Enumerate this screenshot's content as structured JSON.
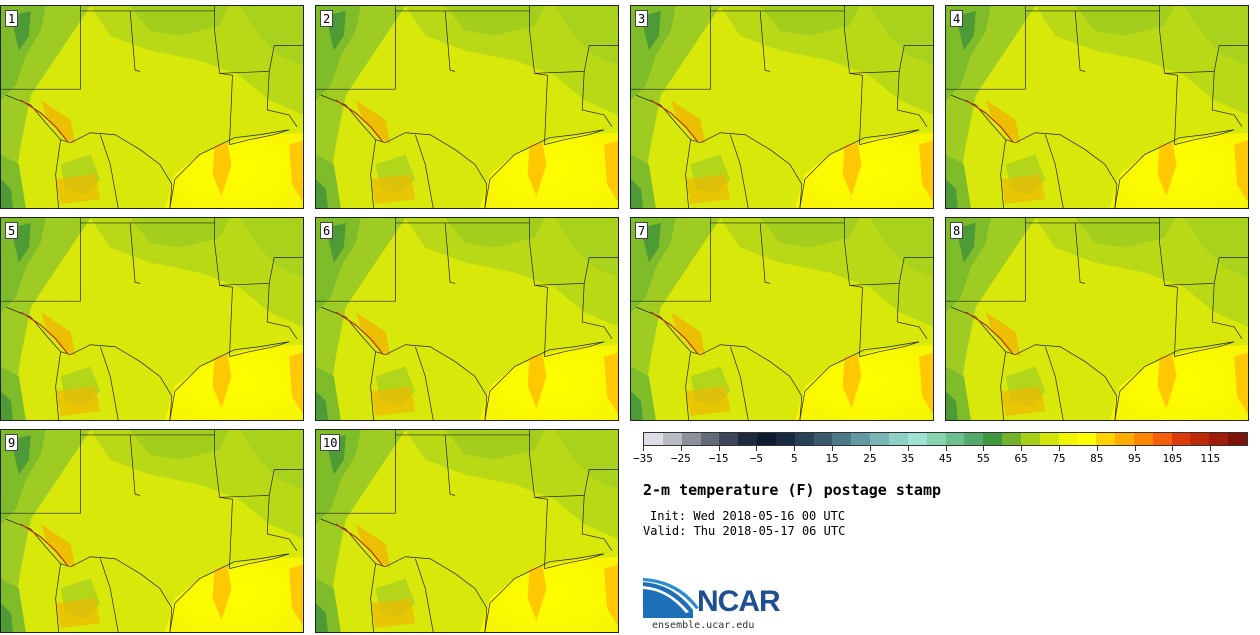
{
  "members": [
    "1",
    "2",
    "3",
    "4",
    "5",
    "6",
    "7",
    "8",
    "9",
    "10"
  ],
  "colorbar": {
    "colors": [
      "#dedfe6",
      "#b8bbc4",
      "#8c909c",
      "#636a78",
      "#3d4656",
      "#1f2a3a",
      "#0e1a2e",
      "#1a2a40",
      "#2a4258",
      "#3a5a6e",
      "#4d7a88",
      "#62989f",
      "#79b5b3",
      "#8fd0c6",
      "#a0e3d4",
      "#86d3b0",
      "#6cc08e",
      "#52ab6c",
      "#3f9840",
      "#73b22c",
      "#a6cf18",
      "#d2e60c",
      "#f2f500",
      "#ffff00",
      "#ffd200",
      "#ffad00",
      "#ff8700",
      "#f55e0a",
      "#dc3a0a",
      "#bc2a0a",
      "#9e1c0c",
      "#7e120c"
    ],
    "tick_labels": [
      "−35",
      "−25",
      "−15",
      "−5",
      "5",
      "15",
      "25",
      "35",
      "45",
      "55",
      "65",
      "75",
      "85",
      "95",
      "105",
      "115"
    ]
  },
  "title": "2-m temperature (F) postage stamp",
  "init_text": "Init: Wed 2018-05-16 00 UTC",
  "valid_text": "Valid: Thu 2018-05-17 06 UTC",
  "logo": {
    "org_name": "NCAR",
    "url": "ensemble.ucar.edu"
  }
}
